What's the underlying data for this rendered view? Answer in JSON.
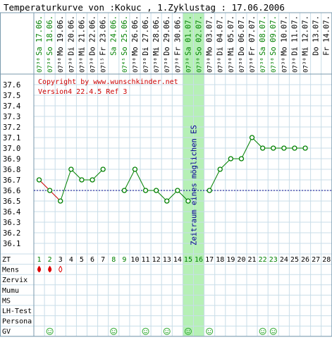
{
  "title": "Temperaturkurve von :Kokuc , 1.Zyklustag : 17.06.2006",
  "copyright": "Copyright by www.wunschkinder.net",
  "version": "Version4 22.4.5 Ref 3",
  "fertile_window_label": "Zeitraum eines möglichen ES",
  "colors": {
    "grid": "#c8dde8",
    "frame": "#7a9aae",
    "temp_line": "#008000",
    "temp_line_first": "#cc0000",
    "point_fill": "#ffffff",
    "coverline": "#00008b",
    "window_fill": "#b6f0b6",
    "label_red": "#cc0000",
    "green_text": "#008000",
    "smiley": "#33aa33",
    "drop": "#dd0000"
  },
  "dates": [
    "Sa 17.06.",
    "So 18.06.",
    "Mo 19.06.",
    "Di 20.06.",
    "Mi 21.06.",
    "Do 22.06.",
    "Fr 23.06.",
    "Sa 24.06.",
    "So 25.06.",
    "Mo 26.06.",
    "Di 27.06.",
    "Mi 28.06.",
    "Do 29.06.",
    "Fr 30.06.",
    "Sa 01.07.",
    "So 02.07.",
    "Mo 03.07.",
    "Di 04.07.",
    "Mi 05.07.",
    "Do 06.07.",
    "Fr 07.07.",
    "Sa 08.07.",
    "So 09.07.",
    "Mo 10.07.",
    "Di 11.07.",
    "Mi 12.07.",
    "Do 13.07.",
    "Fr 14.07."
  ],
  "weekend_days": [
    1,
    2,
    8,
    9,
    15,
    16,
    22,
    23
  ],
  "times": [
    "07³⁰",
    "07³⁰",
    "07³⁰",
    "07³⁰",
    "07³⁰",
    "07³⁰",
    "07¹⁵",
    "",
    "07⁴⁵",
    "07³⁰",
    "07³⁰",
    "07³⁰",
    "07³⁰",
    "07³⁰",
    "07³⁰",
    "07³⁰",
    "07³⁰",
    "07³⁰",
    "07³⁰",
    "07³⁰",
    "07³⁰",
    "07³⁰",
    "07³⁰",
    "07³⁰",
    "07³⁰",
    "07³⁰",
    "",
    ""
  ],
  "row_labels": [
    "ZT",
    "Mens",
    "Zervix",
    "Mumu",
    "MS",
    "LH-Test",
    "Persona",
    "GV"
  ],
  "mens_days": [
    1,
    2,
    3
  ],
  "mens_light_days": [
    3
  ],
  "gv_days": [
    2,
    8,
    11,
    13,
    15,
    17,
    22,
    23
  ],
  "chart_data": {
    "type": "line",
    "x": [
      1,
      2,
      3,
      4,
      5,
      6,
      7,
      8,
      9,
      10,
      11,
      12,
      13,
      14,
      15,
      16,
      17,
      18,
      19,
      20,
      21,
      22,
      23,
      24,
      25,
      26
    ],
    "values": [
      36.7,
      36.6,
      36.5,
      36.8,
      36.7,
      36.7,
      36.8,
      null,
      36.6,
      36.8,
      36.6,
      36.6,
      36.5,
      36.6,
      36.5,
      null,
      36.6,
      36.8,
      36.9,
      36.9,
      37.1,
      37.0,
      37.0,
      37.0,
      37.0,
      37.0
    ],
    "xlabel": "ZT",
    "day_numbers": [
      1,
      2,
      3,
      4,
      5,
      6,
      7,
      8,
      9,
      10,
      11,
      12,
      13,
      14,
      15,
      16,
      17,
      18,
      19,
      20,
      21,
      22,
      23,
      24,
      25,
      26,
      27,
      28
    ],
    "green_day_numbers": [
      1,
      2,
      8,
      9,
      15,
      16,
      22,
      23
    ],
    "yticks": [
      36.1,
      36.2,
      36.3,
      36.4,
      36.5,
      36.6,
      36.7,
      36.8,
      36.9,
      37.0,
      37.1,
      37.2,
      37.3,
      37.4,
      37.5,
      37.6
    ],
    "ytick_labels": [
      "36.1",
      "36.2",
      "36.3",
      "36.4",
      "36.5",
      "36.6",
      "36.7",
      "36.8",
      "36.9",
      "37.0",
      "37.1",
      "37.2",
      "37.3",
      "37.4",
      "37.5",
      "37.6"
    ],
    "ylim": [
      36.0,
      37.7
    ],
    "coverline": 36.6,
    "fertile_window_days": [
      15,
      16
    ],
    "red_segments_until_day": 3,
    "grid": true
  }
}
